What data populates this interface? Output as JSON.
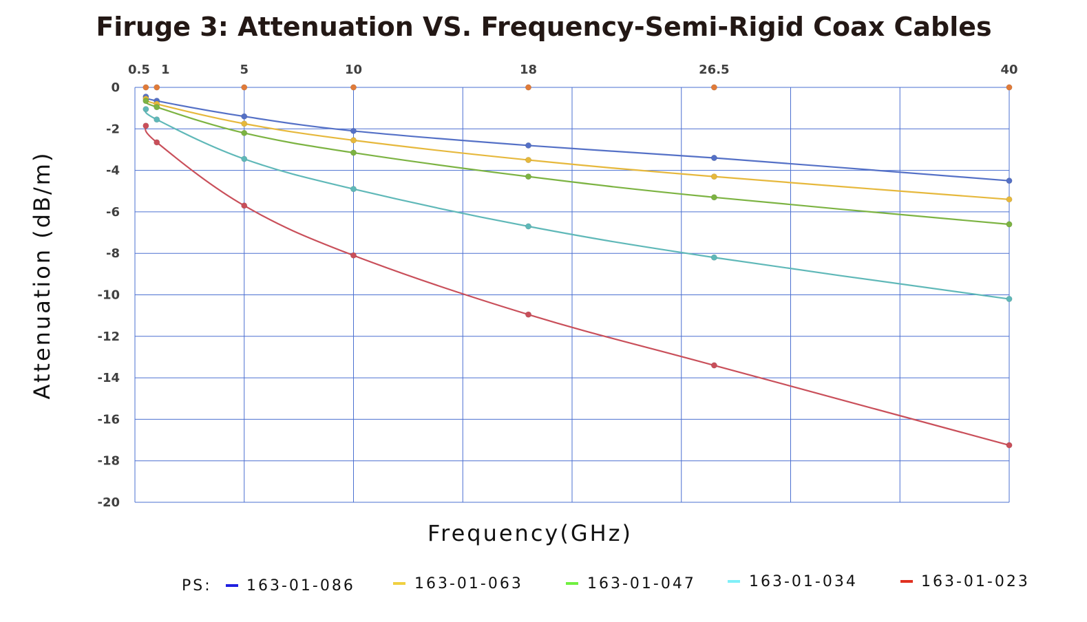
{
  "chart_data": {
    "type": "line",
    "title": "Firuge 3: Attenuation VS. Frequency-Semi-Rigid Coax Cables",
    "xlabel": "Frequency(GHz)",
    "ylabel": "Attenuation (dB/m)",
    "x_ticks": [
      "0.5",
      "1",
      "5",
      "10",
      "18",
      "26.5",
      "40"
    ],
    "x_tick_values": [
      0.5,
      1,
      5,
      10,
      18,
      26.5,
      40
    ],
    "x_axis_position": "top",
    "xlim": [
      0,
      40
    ],
    "ylim": [
      -20,
      0
    ],
    "y_ticks": [
      "0",
      "-2",
      "-4",
      "-6",
      "-8",
      "-10",
      "-12",
      "-14",
      "-16",
      "-18",
      "-20"
    ],
    "y_tick_values": [
      0,
      -2,
      -4,
      -6,
      -8,
      -10,
      -12,
      -14,
      -16,
      -18,
      -20
    ],
    "grid": true,
    "x": [
      0.5,
      1,
      5,
      10,
      18,
      26.5,
      40
    ],
    "series": [
      {
        "name": "",
        "color": "#e07b39",
        "values": [
          0,
          0,
          0,
          0,
          0,
          0,
          0
        ]
      },
      {
        "name": "163-01-086",
        "color": "#5470c6",
        "values": [
          -0.45,
          -0.65,
          -1.4,
          -2.1,
          -2.8,
          -3.4,
          -4.5
        ]
      },
      {
        "name": "163-01-063",
        "color": "#e6b83c",
        "values": [
          -0.55,
          -0.8,
          -1.75,
          -2.55,
          -3.5,
          -4.3,
          -5.4
        ]
      },
      {
        "name": "163-01-047",
        "color": "#7cb342",
        "values": [
          -0.65,
          -0.95,
          -2.2,
          -3.15,
          -4.3,
          -5.3,
          -6.6
        ]
      },
      {
        "name": "163-01-034",
        "color": "#5fb8b8",
        "values": [
          -1.05,
          -1.55,
          -3.45,
          -4.9,
          -6.7,
          -8.2,
          -10.2
        ]
      },
      {
        "name": "163-01-023",
        "color": "#c94f5a",
        "values": [
          -1.85,
          -2.65,
          -5.7,
          -8.1,
          -10.95,
          -13.4,
          -17.25
        ]
      }
    ],
    "legend_placement": "bottom",
    "legend_prefix": "PS:",
    "legend_items": [
      {
        "label": "163-01-086",
        "color": "#2020e0"
      },
      {
        "label": "163-01-063",
        "color": "#f0d040"
      },
      {
        "label": "163-01-047",
        "color": "#70f040"
      },
      {
        "label": "163-01-034",
        "color": "#80f0f8"
      },
      {
        "label": "163-01-023",
        "color": "#e03020"
      }
    ],
    "grid_color": "#4a6fd0"
  }
}
